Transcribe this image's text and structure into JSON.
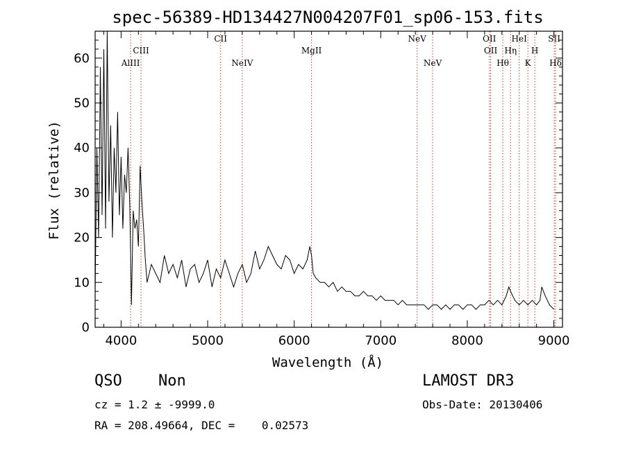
{
  "chart_data": {
    "type": "line",
    "title": "spec-56389-HD134427N004207F01_sp06-153.fits",
    "xlabel": "Wavelength (Å)",
    "ylabel": "Flux (relative)",
    "xlim": [
      3700,
      9100
    ],
    "ylim": [
      0,
      66
    ],
    "x_ticks": [
      4000,
      5000,
      6000,
      7000,
      8000,
      9000
    ],
    "y_ticks": [
      0,
      10,
      20,
      30,
      40,
      50,
      60
    ],
    "grid": false,
    "series": [
      {
        "color": "#000000",
        "x": [
          3700,
          3720,
          3740,
          3760,
          3780,
          3800,
          3820,
          3840,
          3860,
          3880,
          3900,
          3920,
          3940,
          3960,
          3980,
          4000,
          4020,
          4040,
          4060,
          4080,
          4100,
          4120,
          4140,
          4160,
          4180,
          4200,
          4220,
          4240,
          4260,
          4280,
          4300,
          4350,
          4400,
          4450,
          4500,
          4550,
          4600,
          4650,
          4700,
          4750,
          4800,
          4850,
          4900,
          4950,
          5000,
          5050,
          5100,
          5150,
          5200,
          5250,
          5300,
          5350,
          5400,
          5450,
          5500,
          5550,
          5600,
          5650,
          5700,
          5750,
          5800,
          5850,
          5900,
          5950,
          6000,
          6050,
          6100,
          6150,
          6180,
          6200,
          6220,
          6250,
          6300,
          6350,
          6400,
          6450,
          6500,
          6550,
          6600,
          6650,
          6700,
          6750,
          6800,
          6850,
          6900,
          6950,
          7000,
          7050,
          7100,
          7150,
          7200,
          7250,
          7300,
          7350,
          7400,
          7450,
          7500,
          7550,
          7600,
          7650,
          7700,
          7750,
          7800,
          7850,
          7900,
          7950,
          8000,
          8050,
          8100,
          8150,
          8200,
          8250,
          8300,
          8350,
          8400,
          8450,
          8480,
          8500,
          8550,
          8600,
          8650,
          8700,
          8750,
          8800,
          8840,
          8860,
          8900,
          8950,
          9000
        ],
        "y": [
          8,
          40,
          20,
          58,
          25,
          62,
          22,
          66,
          28,
          45,
          20,
          40,
          30,
          48,
          25,
          38,
          22,
          34,
          30,
          40,
          27,
          5,
          26,
          22,
          24,
          18,
          36,
          28,
          22,
          15,
          10,
          14,
          12,
          10,
          16,
          12,
          14,
          11,
          15,
          9,
          13,
          14,
          10,
          12,
          15,
          9,
          13,
          11,
          15,
          12,
          9,
          12,
          14,
          10,
          12,
          17,
          13,
          15,
          18,
          16,
          14,
          13,
          16,
          15,
          12,
          14,
          13,
          15,
          18,
          16,
          12,
          11,
          10,
          10,
          9,
          10,
          8,
          9,
          8,
          8,
          7,
          7,
          8,
          7,
          7,
          6,
          7,
          6,
          6,
          6,
          5,
          6,
          5,
          5,
          5,
          5,
          5,
          4,
          5,
          5,
          4,
          5,
          4,
          5,
          5,
          4,
          5,
          5,
          4,
          5,
          5,
          6,
          5,
          6,
          5,
          7,
          9,
          8,
          6,
          5,
          6,
          5,
          6,
          5,
          6,
          9,
          7,
          5,
          4
        ]
      }
    ],
    "lines": [
      {
        "label": "AlIII",
        "x": 4110,
        "row": 2
      },
      {
        "label": "CIII",
        "x": 4230,
        "row": 1
      },
      {
        "label": "CII",
        "x": 5150,
        "row": 0
      },
      {
        "label": "NeIV",
        "x": 5400,
        "row": 2
      },
      {
        "label": "MgII",
        "x": 6200,
        "row": 1
      },
      {
        "label": "NeV",
        "x": 7420,
        "row": 0
      },
      {
        "label": "NeV",
        "x": 7600,
        "row": 2
      },
      {
        "label": "OII",
        "x": 8255,
        "row": 0
      },
      {
        "label": "OII",
        "x": 8270,
        "row": 1
      },
      {
        "label": "Hθ",
        "x": 8410,
        "row": 2
      },
      {
        "label": "Hη",
        "x": 8500,
        "row": 1
      },
      {
        "label": "HeI",
        "x": 8600,
        "row": 0
      },
      {
        "label": "K",
        "x": 8700,
        "row": 2
      },
      {
        "label": "H",
        "x": 8780,
        "row": 1
      },
      {
        "label": "SII",
        "x": 9005,
        "row": 0
      },
      {
        "label": "Hδ",
        "x": 9020,
        "row": 2
      }
    ]
  },
  "footer": {
    "class_label": "QSO",
    "subclass_label": "Non",
    "survey": "LAMOST DR3",
    "cz": "cz = 1.2 ± -9999.0",
    "obs_date": "Obs-Date: 20130406",
    "radec": "RA = 208.49664, DEC =    0.02573"
  }
}
